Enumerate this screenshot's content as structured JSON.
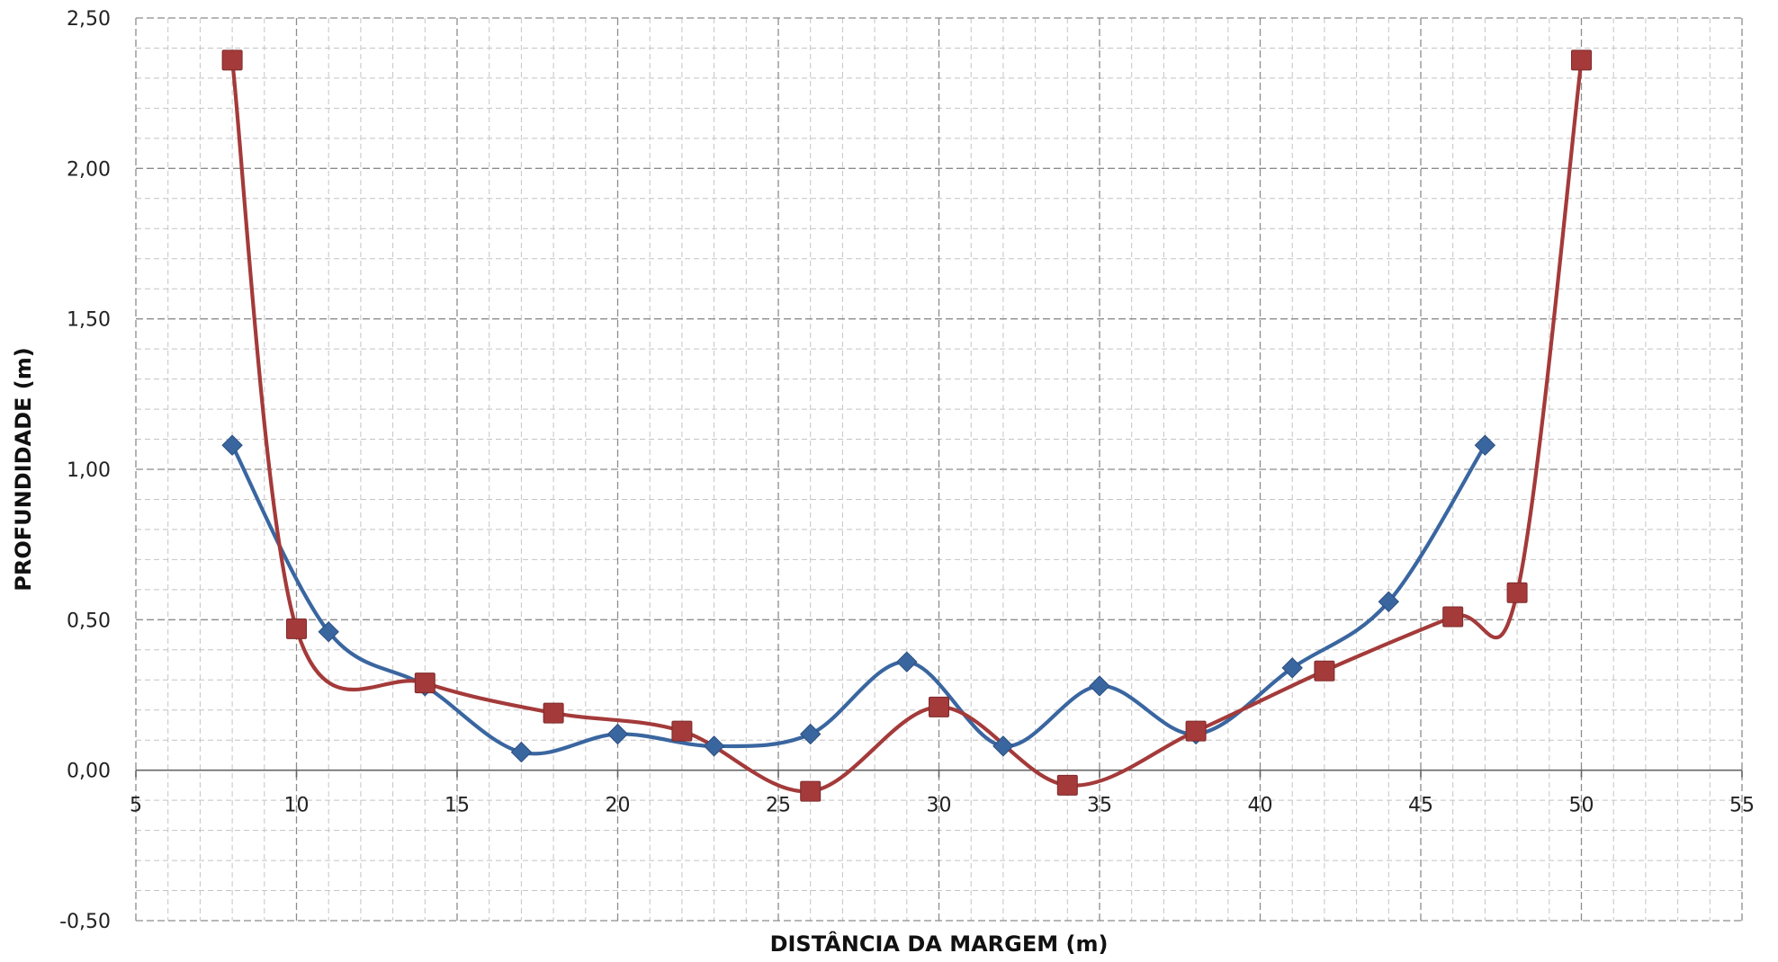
{
  "chart_data": {
    "type": "line",
    "title": "",
    "xlabel": "DISTÂNCIA DA MARGEM (m)",
    "ylabel": "PROFUNDIDADE (m)",
    "xlim": [
      5,
      55
    ],
    "ylim": [
      -0.5,
      2.5
    ],
    "x_ticks": [
      "5",
      "10",
      "15",
      "20",
      "25",
      "30",
      "35",
      "40",
      "45",
      "50",
      "55"
    ],
    "y_ticks": [
      "-0,50",
      "0,00",
      "0,50",
      "1,00",
      "1,50",
      "2,00",
      "2,50"
    ],
    "grid": true,
    "legend": "none",
    "series": [
      {
        "color": "#3a66a0",
        "marker": "diamond",
        "x": [
          8,
          11,
          14,
          17,
          20,
          23,
          26,
          29,
          32,
          35,
          38,
          41,
          44,
          47
        ],
        "y": [
          1.08,
          0.46,
          0.28,
          0.06,
          0.12,
          0.08,
          0.12,
          0.36,
          0.08,
          0.28,
          0.12,
          0.34,
          0.56,
          1.08
        ]
      },
      {
        "color": "#a43a3a",
        "marker": "square",
        "x": [
          8,
          10,
          14,
          18,
          22,
          26,
          30,
          34,
          38,
          42,
          46,
          48,
          50
        ],
        "y": [
          2.36,
          0.47,
          0.29,
          0.19,
          0.13,
          -0.07,
          0.21,
          -0.05,
          0.13,
          0.33,
          0.51,
          0.59,
          2.36
        ]
      }
    ]
  }
}
